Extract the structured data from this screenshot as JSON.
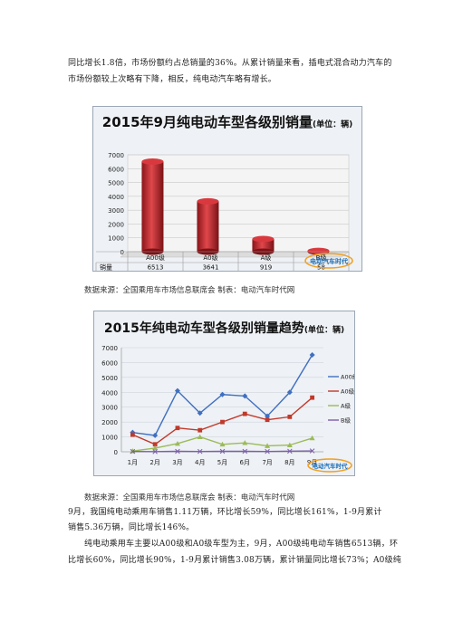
{
  "text_top": {
    "line1": "同比增长1.8倍，市场份额约占总销量的36%。从累计销量来看，插电式混合动力汽车的",
    "line2": "市场份额较上次略有下降，相反，纯电动汽车略有增长。"
  },
  "chart1": {
    "title": "2015年9月纯电动车型各级别销量",
    "unit": "(单位：辆)",
    "table_label": "销量",
    "logo_text": "电动汽车时代"
  },
  "source1": "数据来源：全国乘用车市场信息联席会 制表：电动汽车时代网",
  "chart2": {
    "title": "2015年纯电动车型各级别销量趋势",
    "unit": "(单位：辆)",
    "logo_text": "电动汽车时代"
  },
  "source2": "数据来源：全国乘用车市场信息联席会 制表：电动汽车时代网",
  "text_bottom": {
    "line1": "9月，我国纯电动乘用车销售1.11万辆，环比增长59%，同比增长161%，1-9月累计",
    "line2": "销售5.36万辆，同比增长146%。",
    "line3": "纯电动乘用车主要以A00级和A0级车型为主，9月，A00级纯电动车销售6513辆，环",
    "line4": "比增长60%，同比增长90%，1-9月累计销售3.08万辆，累计销量同比增长73%；A0级纯"
  },
  "colors": {
    "bar": "#c0282d",
    "a00": "#3f6fc0",
    "a0": "#c0392b",
    "a": "#9bbb59",
    "b": "#7b5fa8"
  },
  "chart_data": [
    {
      "type": "bar",
      "title": "2015年9月纯电动车型各级别销量",
      "unit": "(单位：辆)",
      "categories": [
        "A00级",
        "A0级",
        "A级",
        "B级"
      ],
      "values": [
        6513,
        3641,
        919,
        58
      ],
      "row_label": "销量",
      "ylim": [
        0,
        7000
      ],
      "yticks": [
        0,
        1000,
        2000,
        3000,
        4000,
        5000,
        6000,
        7000
      ],
      "grid": true
    },
    {
      "type": "line",
      "title": "2015年纯电动车型各级别销量趋势",
      "unit": "(单位：辆)",
      "categories": [
        "1月",
        "2月",
        "3月",
        "4月",
        "5月",
        "6月",
        "7月",
        "8月",
        "9月"
      ],
      "ylim": [
        0,
        7000
      ],
      "yticks": [
        0,
        1000,
        2000,
        3000,
        4000,
        5000,
        6000,
        7000
      ],
      "legend": "right",
      "grid": true,
      "series": [
        {
          "name": "A00级",
          "values": [
            1300,
            1100,
            4100,
            2600,
            3850,
            3750,
            2400,
            4000,
            6513
          ]
        },
        {
          "name": "A0级",
          "values": [
            1150,
            500,
            1600,
            1450,
            2000,
            2550,
            2150,
            2350,
            3641
          ]
        },
        {
          "name": "A级",
          "values": [
            50,
            250,
            550,
            1000,
            500,
            600,
            400,
            450,
            919
          ]
        },
        {
          "name": "B级",
          "values": [
            20,
            10,
            30,
            20,
            30,
            30,
            20,
            40,
            58
          ]
        }
      ]
    }
  ]
}
